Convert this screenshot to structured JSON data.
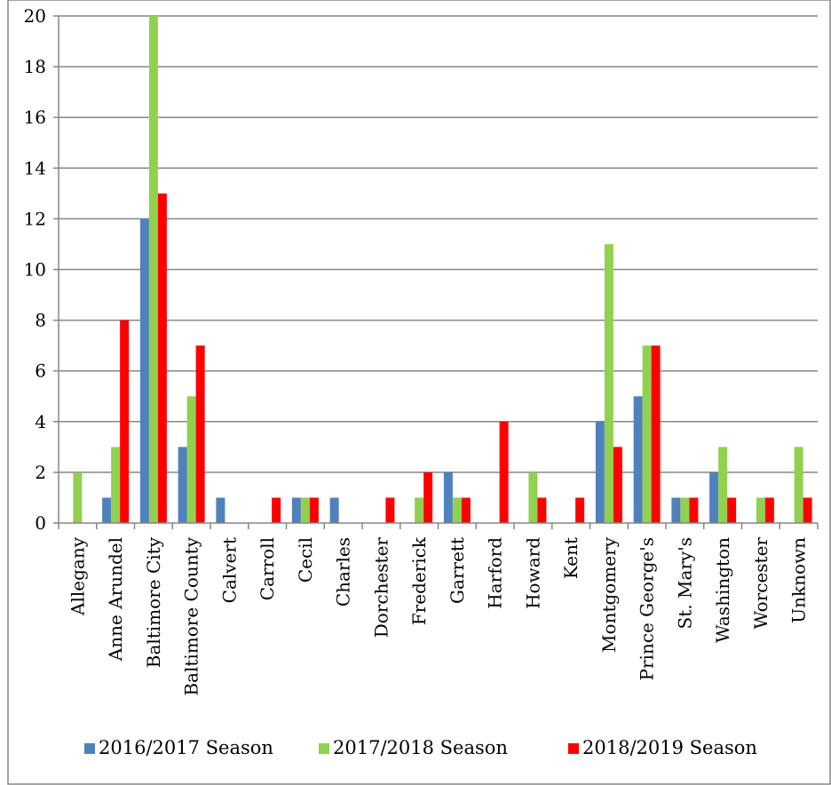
{
  "chart_data": {
    "type": "bar",
    "categories": [
      "Allegany",
      "Anne Arundel",
      "Baltimore City",
      "Baltimore County",
      "Calvert",
      "Carroll",
      "Cecil",
      "Charles",
      "Dorchester",
      "Frederick",
      "Garrett",
      "Harford",
      "Howard",
      "Kent",
      "Montgomery",
      "Prince George's",
      "St. Mary's",
      "Washington",
      "Worcester",
      "Unknown"
    ],
    "series": [
      {
        "name": "2016/2017 Season",
        "color": "#4f81bd",
        "values": [
          0,
          1,
          12,
          3,
          1,
          0,
          1,
          1,
          0,
          0,
          2,
          0,
          0,
          0,
          4,
          5,
          1,
          2,
          0,
          0
        ]
      },
      {
        "name": "2017/2018 Season",
        "color": "#92d050",
        "values": [
          2,
          3,
          20,
          5,
          0,
          0,
          1,
          0,
          0,
          1,
          1,
          0,
          2,
          0,
          11,
          7,
          1,
          3,
          1,
          3
        ]
      },
      {
        "name": "2018/2019 Season",
        "color": "#ff0000",
        "values": [
          0,
          8,
          13,
          7,
          0,
          1,
          1,
          0,
          1,
          2,
          1,
          4,
          1,
          1,
          3,
          7,
          1,
          1,
          1,
          1
        ]
      }
    ],
    "yticks": [
      "0",
      "2",
      "4",
      "6",
      "8",
      "10",
      "12",
      "14",
      "16",
      "18",
      "20"
    ],
    "ylim": [
      0,
      20
    ],
    "grid": true,
    "legend_position": "bottom",
    "title": "",
    "xlabel": "",
    "ylabel": ""
  }
}
